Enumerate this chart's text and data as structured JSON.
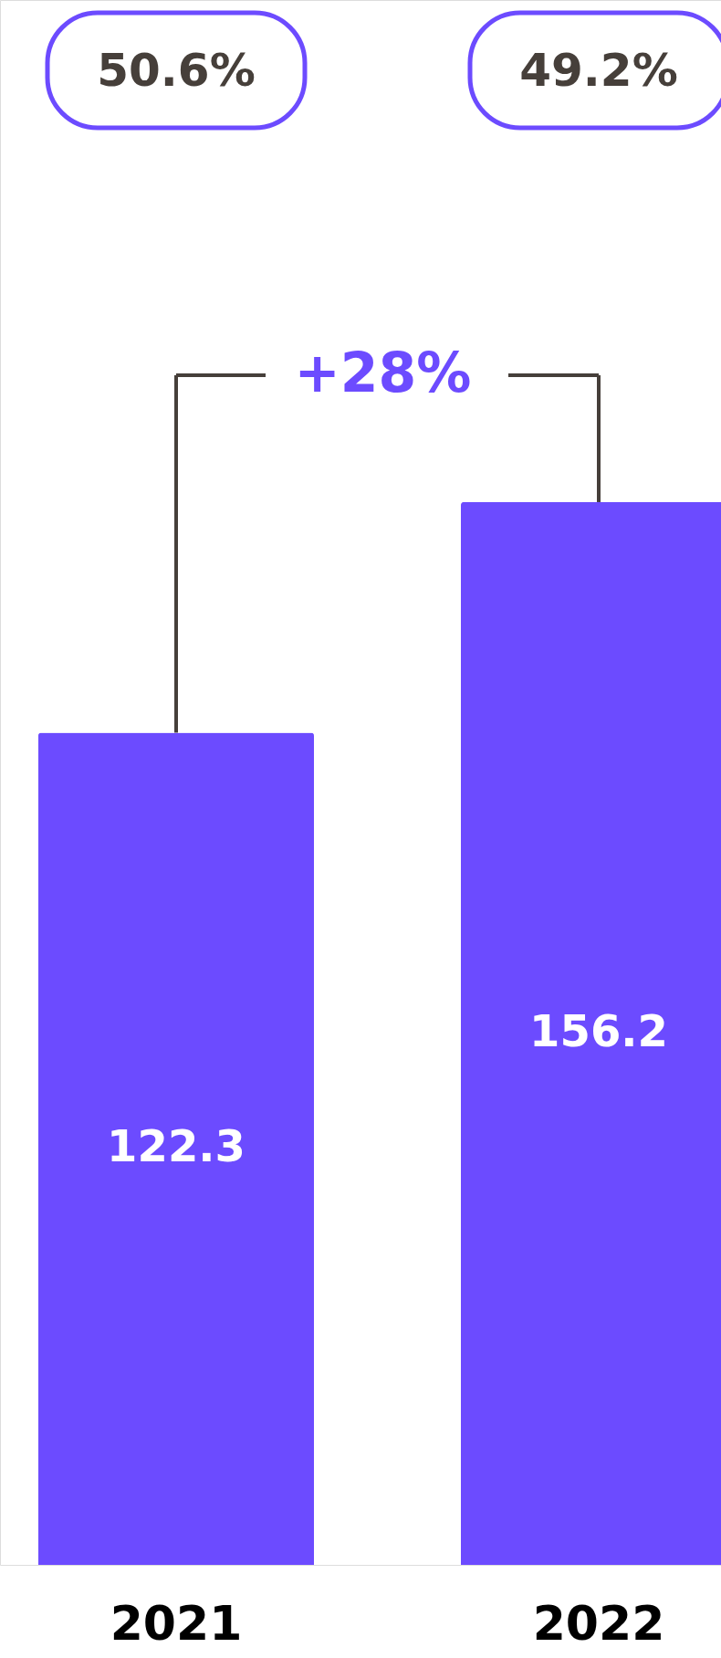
{
  "chart_data": {
    "type": "bar",
    "categories": [
      "2021",
      "2022"
    ],
    "values": [
      122.3,
      156.2
    ],
    "color": "#6c4bff",
    "ylim": [
      0,
      230
    ],
    "data_labels": true,
    "annotations": [
      "50.6%",
      "49.2%",
      "+28%"
    ]
  }
}
